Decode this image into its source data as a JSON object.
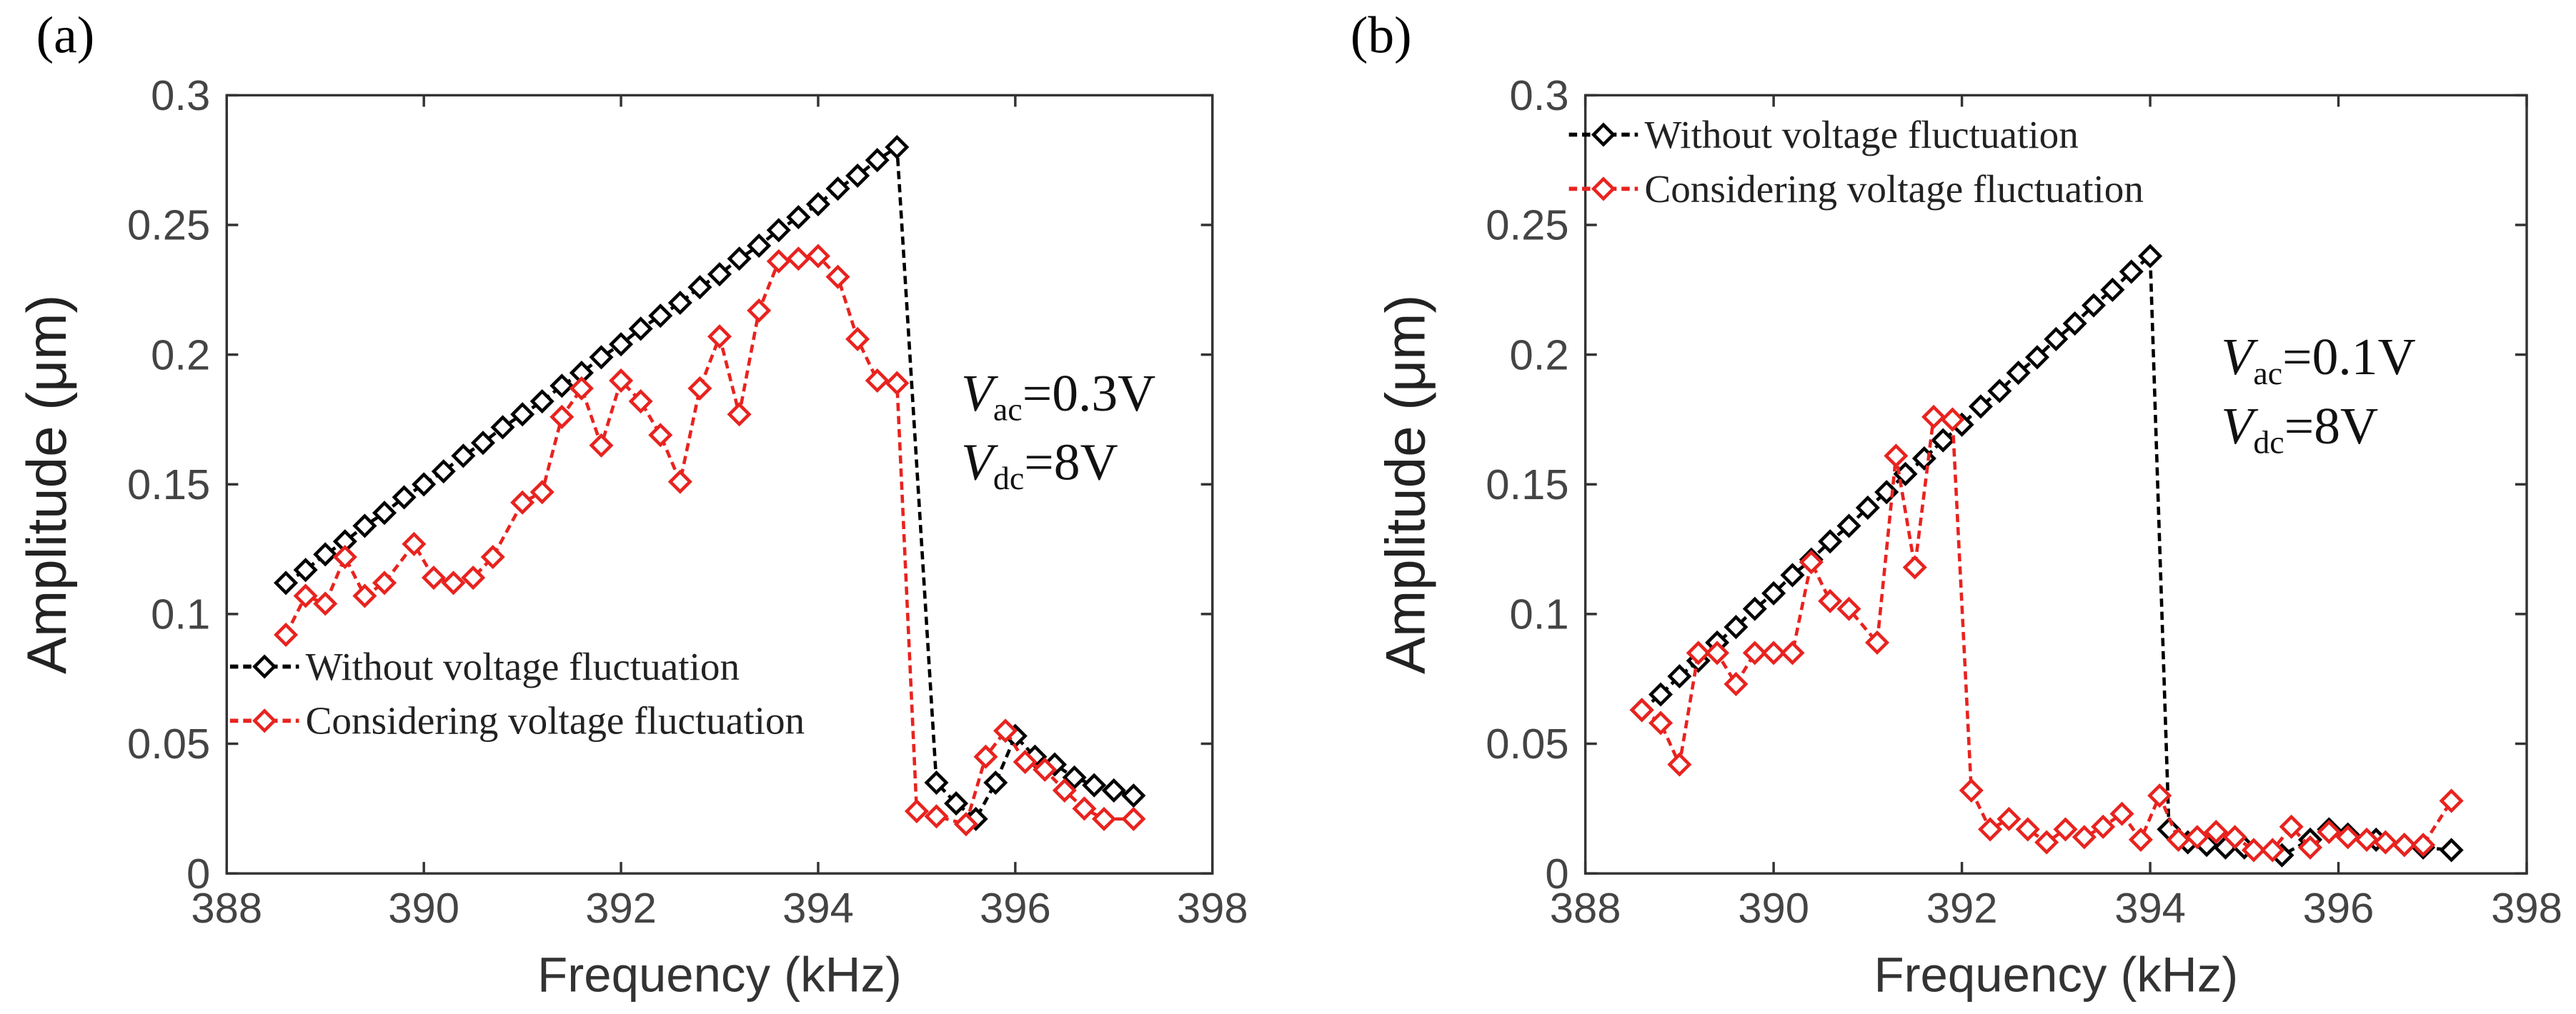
{
  "chart_data": [
    {
      "type": "line",
      "panel_label": "(a)",
      "xlabel": "Frequency (kHz)",
      "ylabel": "Amplitude (μm)",
      "xlim": [
        388,
        398
      ],
      "xticks": [
        388,
        390,
        392,
        394,
        396,
        398
      ],
      "ylim": [
        0,
        0.3
      ],
      "yticks": [
        0,
        0.05,
        0.1,
        0.15,
        0.2,
        0.25,
        0.3
      ],
      "legend": "lower left",
      "annotations": [
        {
          "symbol": "V",
          "subscript": "ac",
          "text": "=0.3V"
        },
        {
          "symbol": "V",
          "subscript": "dc",
          "text": "=8V"
        }
      ],
      "series": [
        {
          "name": "Without voltage fluctuation",
          "color": "#000000",
          "x": [
            388.6,
            388.8,
            389.0,
            389.2,
            389.4,
            389.6,
            389.8,
            390.0,
            390.2,
            390.4,
            390.6,
            390.8,
            391.0,
            391.2,
            391.4,
            391.6,
            391.8,
            392.0,
            392.2,
            392.4,
            392.6,
            392.8,
            393.0,
            393.2,
            393.4,
            393.6,
            393.8,
            394.0,
            394.2,
            394.4,
            394.6,
            394.8,
            395.2,
            395.4,
            395.6,
            395.8,
            396.0,
            396.2,
            396.4,
            396.6,
            396.8,
            397.0,
            397.2
          ],
          "values": [
            0.112,
            0.117,
            0.123,
            0.128,
            0.134,
            0.139,
            0.145,
            0.15,
            0.155,
            0.161,
            0.166,
            0.172,
            0.177,
            0.182,
            0.188,
            0.193,
            0.199,
            0.204,
            0.21,
            0.215,
            0.22,
            0.226,
            0.231,
            0.237,
            0.242,
            0.248,
            0.253,
            0.258,
            0.264,
            0.269,
            0.275,
            0.28,
            0.035,
            0.027,
            0.021,
            0.035,
            0.053,
            0.045,
            0.042,
            0.037,
            0.034,
            0.032,
            0.03
          ]
        },
        {
          "name": "Considering voltage fluctuation",
          "color": "#e8231f",
          "x": [
            388.6,
            388.8,
            389.0,
            389.2,
            389.4,
            389.6,
            389.9,
            390.1,
            390.3,
            390.5,
            390.7,
            391.0,
            391.2,
            391.4,
            391.6,
            391.8,
            392.0,
            392.2,
            392.4,
            392.6,
            392.8,
            393.0,
            393.2,
            393.4,
            393.6,
            393.8,
            394.0,
            394.2,
            394.4,
            394.6,
            394.8,
            395.0,
            395.2,
            395.5,
            395.7,
            395.9,
            396.1,
            396.3,
            396.5,
            396.7,
            396.9,
            397.2
          ],
          "values": [
            0.092,
            0.107,
            0.104,
            0.122,
            0.107,
            0.112,
            0.127,
            0.114,
            0.112,
            0.114,
            0.122,
            0.143,
            0.147,
            0.176,
            0.187,
            0.165,
            0.19,
            0.182,
            0.169,
            0.151,
            0.187,
            0.207,
            0.177,
            0.217,
            0.236,
            0.237,
            0.238,
            0.23,
            0.206,
            0.19,
            0.189,
            0.024,
            0.022,
            0.019,
            0.045,
            0.055,
            0.043,
            0.04,
            0.032,
            0.025,
            0.021,
            0.021
          ]
        }
      ]
    },
    {
      "type": "line",
      "panel_label": "(b)",
      "xlabel": "Frequency (kHz)",
      "ylabel": "Amplitude (μm)",
      "xlim": [
        388,
        398
      ],
      "xticks": [
        388,
        390,
        392,
        394,
        396,
        398
      ],
      "ylim": [
        0,
        0.3
      ],
      "yticks": [
        0,
        0.05,
        0.1,
        0.15,
        0.2,
        0.25,
        0.3
      ],
      "legend": "upper left",
      "annotations": [
        {
          "symbol": "V",
          "subscript": "ac",
          "text": "=0.1V"
        },
        {
          "symbol": "V",
          "subscript": "dc",
          "text": "=8V"
        }
      ],
      "series": [
        {
          "name": "Without voltage fluctuation",
          "color": "#000000",
          "x": [
            388.6,
            388.8,
            389.0,
            389.2,
            389.4,
            389.6,
            389.8,
            390.0,
            390.2,
            390.4,
            390.6,
            390.8,
            391.0,
            391.2,
            391.4,
            391.6,
            391.8,
            392.0,
            392.2,
            392.4,
            392.6,
            392.8,
            393.0,
            393.2,
            393.4,
            393.6,
            393.8,
            394.0,
            394.2,
            394.4,
            394.6,
            394.8,
            395.0,
            395.4,
            395.7,
            395.9,
            396.1,
            396.4,
            396.7,
            396.9,
            397.2
          ],
          "values": [
            0.063,
            0.069,
            0.076,
            0.082,
            0.089,
            0.095,
            0.102,
            0.108,
            0.115,
            0.121,
            0.128,
            0.134,
            0.141,
            0.147,
            0.154,
            0.16,
            0.167,
            0.173,
            0.18,
            0.186,
            0.193,
            0.199,
            0.206,
            0.212,
            0.219,
            0.225,
            0.232,
            0.238,
            0.017,
            0.012,
            0.011,
            0.01,
            0.01,
            0.007,
            0.013,
            0.017,
            0.015,
            0.013,
            0.011,
            0.01,
            0.009
          ]
        },
        {
          "name": "Considering voltage fluctuation",
          "color": "#e8231f",
          "x": [
            388.6,
            388.8,
            389.0,
            389.2,
            389.4,
            389.6,
            389.8,
            390.0,
            390.2,
            390.4,
            390.6,
            390.8,
            391.1,
            391.3,
            391.5,
            391.7,
            391.9,
            392.1,
            392.3,
            392.5,
            392.7,
            392.9,
            393.1,
            393.3,
            393.5,
            393.7,
            393.9,
            394.1,
            394.3,
            394.5,
            394.7,
            394.9,
            395.1,
            395.3,
            395.5,
            395.7,
            395.9,
            396.1,
            396.3,
            396.5,
            396.7,
            396.9,
            397.2
          ],
          "values": [
            0.063,
            0.058,
            0.042,
            0.085,
            0.085,
            0.073,
            0.085,
            0.085,
            0.085,
            0.12,
            0.105,
            0.102,
            0.089,
            0.161,
            0.118,
            0.176,
            0.175,
            0.032,
            0.017,
            0.021,
            0.017,
            0.012,
            0.017,
            0.014,
            0.018,
            0.023,
            0.013,
            0.03,
            0.013,
            0.014,
            0.016,
            0.014,
            0.009,
            0.009,
            0.018,
            0.01,
            0.016,
            0.014,
            0.013,
            0.012,
            0.011,
            0.011,
            0.028
          ]
        }
      ]
    }
  ]
}
